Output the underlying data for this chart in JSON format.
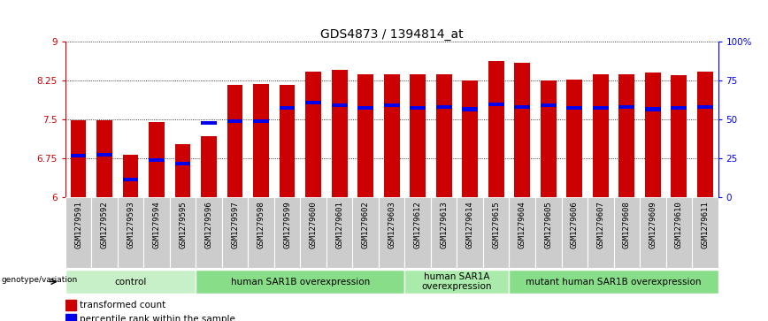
{
  "title": "GDS4873 / 1394814_at",
  "samples": [
    "GSM1279591",
    "GSM1279592",
    "GSM1279593",
    "GSM1279594",
    "GSM1279595",
    "GSM1279596",
    "GSM1279597",
    "GSM1279598",
    "GSM1279599",
    "GSM1279600",
    "GSM1279601",
    "GSM1279602",
    "GSM1279603",
    "GSM1279612",
    "GSM1279613",
    "GSM1279614",
    "GSM1279615",
    "GSM1279604",
    "GSM1279605",
    "GSM1279606",
    "GSM1279607",
    "GSM1279608",
    "GSM1279609",
    "GSM1279610",
    "GSM1279611"
  ],
  "bar_values": [
    7.48,
    7.48,
    6.82,
    7.45,
    7.02,
    7.18,
    8.17,
    8.18,
    8.17,
    8.42,
    8.46,
    8.37,
    8.37,
    8.38,
    8.38,
    8.25,
    8.63,
    8.6,
    8.25,
    8.27,
    8.38,
    8.38,
    8.4,
    8.35,
    8.42
  ],
  "percentile_values": [
    6.8,
    6.82,
    6.35,
    6.72,
    6.65,
    7.43,
    7.47,
    7.47,
    7.72,
    7.82,
    7.77,
    7.73,
    7.77,
    7.73,
    7.74,
    7.7,
    7.79,
    7.74,
    7.78,
    7.72,
    7.73,
    7.74,
    7.7,
    7.72,
    7.74
  ],
  "ymin": 6.0,
  "ymax": 9.0,
  "yticks": [
    6.0,
    6.75,
    7.5,
    8.25,
    9.0
  ],
  "ytick_labels": [
    "6",
    "6.75",
    "7.5",
    "8.25",
    "9"
  ],
  "right_ytick_pct": [
    0,
    25,
    50,
    75,
    100
  ],
  "right_ytick_labels": [
    "0",
    "25",
    "50",
    "75",
    "100%"
  ],
  "bar_color": "#cc0000",
  "percentile_color": "#0000ee",
  "bar_width": 0.6,
  "groups": [
    {
      "label": "control",
      "start": 0,
      "end": 4,
      "color": "#c8f0c8"
    },
    {
      "label": "human SAR1B overexpression",
      "start": 5,
      "end": 12,
      "color": "#88dd88"
    },
    {
      "label": "human SAR1A\noverexpression",
      "start": 13,
      "end": 16,
      "color": "#aaeaaa"
    },
    {
      "label": "mutant human SAR1B overexpression",
      "start": 17,
      "end": 24,
      "color": "#88dd88"
    }
  ],
  "group_row_label": "genotype/variation",
  "legend_bar_label": "transformed count",
  "legend_percentile_label": "percentile rank within the sample",
  "left_axis_color": "#cc0000",
  "right_axis_color": "#0000ee",
  "xtick_bg_color": "#cccccc",
  "title_fontsize": 10,
  "tick_fontsize": 7.5,
  "sample_fontsize": 6.5,
  "group_fontsize": 7.5,
  "legend_fontsize": 7.5
}
